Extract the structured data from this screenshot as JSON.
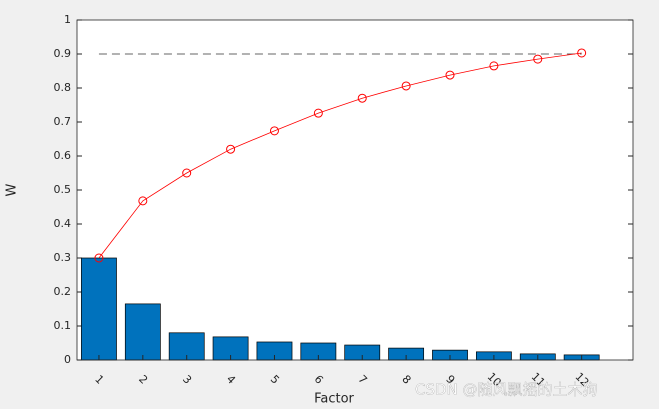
{
  "chart_data": {
    "type": "bar",
    "x_label": "Factor",
    "y_label": "W",
    "categories": [
      "1",
      "2",
      "3",
      "4",
      "5",
      "6",
      "7",
      "8",
      "9",
      "10",
      "11",
      "12"
    ],
    "values": [
      0.3,
      0.165,
      0.08,
      0.068,
      0.053,
      0.05,
      0.044,
      0.035,
      0.029,
      0.024,
      0.018,
      0.015
    ],
    "color": "#0072bd",
    "line_values": [
      0.3,
      0.468,
      0.55,
      0.62,
      0.674,
      0.726,
      0.77,
      0.806,
      0.838,
      0.865,
      0.885,
      0.903
    ],
    "line_color": "#ff0000",
    "threshold": 0.9,
    "threshold_color": "#333333",
    "xlim": [
      0.5,
      13.17
    ],
    "ylim": [
      0,
      1
    ],
    "yticks": [
      0,
      0.1,
      0.2,
      0.3,
      0.4,
      0.5,
      0.6,
      0.7,
      0.8,
      0.9,
      1
    ]
  },
  "watermark": "CSDN @随风飘摇的土木狗"
}
